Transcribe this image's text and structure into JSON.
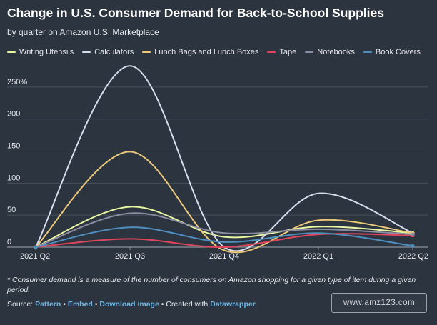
{
  "header": {
    "title": "Change in U.S. Consumer Demand for Back-to-School Supplies",
    "subtitle": "by quarter on Amazon U.S. Marketplace"
  },
  "chart_data": {
    "type": "line",
    "title": "Change in U.S. Consumer Demand for Back-to-School Supplies",
    "subtitle": "by quarter on Amazon U.S. Marketplace",
    "xlabel": "",
    "ylabel": "",
    "categories": [
      "2021 Q2",
      "2021 Q3",
      "2021 Q4",
      "2022 Q1",
      "2022 Q2"
    ],
    "y_ticks": [
      0,
      50,
      100,
      150,
      200,
      250
    ],
    "y_tick_labels": [
      "0",
      "50",
      "100",
      "150",
      "200",
      "250%"
    ],
    "ylim": [
      0,
      280
    ],
    "grid": true,
    "legend_position": "top-left",
    "series": [
      {
        "name": "Writing Utensils",
        "color": "#e9f5a3",
        "values": [
          0,
          63,
          16,
          32,
          22
        ]
      },
      {
        "name": "Calculators",
        "color": "#d6dcec",
        "values": [
          0,
          283,
          0,
          84,
          22
        ]
      },
      {
        "name": "Lunch Bags and Lunch Boxes",
        "color": "#ebc978",
        "values": [
          0,
          149,
          -5,
          42,
          22
        ]
      },
      {
        "name": "Tape",
        "color": "#e1455c",
        "values": [
          0,
          13,
          0,
          20,
          18
        ]
      },
      {
        "name": "Notebooks",
        "color": "#8c8da2",
        "values": [
          0,
          53,
          22,
          28,
          20
        ]
      },
      {
        "name": "Book Covers",
        "color": "#4f8fbf",
        "values": [
          0,
          31,
          8,
          22,
          2
        ]
      }
    ]
  },
  "footer": {
    "footnote": "* Consumer demand is a measure of the number of consumers on Amazon shopping for a given type of item during a given period.",
    "source_prefix": "Source:",
    "source_link": "Pattern",
    "sep1": "•",
    "embed_link": "Embed",
    "sep2": "•",
    "download_link": "Download image",
    "sep3": "• Created with",
    "datawrapper_link": "Datawrapper",
    "watermark": "www.amz123.com"
  }
}
